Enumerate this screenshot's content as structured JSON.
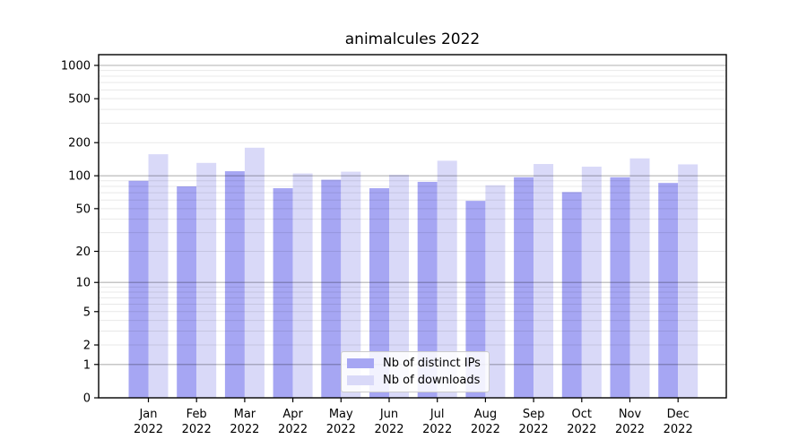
{
  "figure": {
    "background": "#ffffff",
    "plot_border_color": "#000000"
  },
  "chart_data": {
    "type": "bar",
    "title": "animalcules 2022",
    "xlabel": "",
    "ylabel": "",
    "categories": [
      "Jan",
      "Feb",
      "Mar",
      "Apr",
      "May",
      "Jun",
      "Jul",
      "Aug",
      "Sep",
      "Oct",
      "Nov",
      "Dec"
    ],
    "category_year": "2022",
    "series": [
      {
        "name": "Nb of distinct IPs",
        "color": "#a6a6f3",
        "values": [
          90,
          80,
          110,
          77,
          92,
          77,
          88,
          59,
          97,
          71,
          97,
          86
        ]
      },
      {
        "name": "Nb of downloads",
        "color": "#d9d9f8",
        "values": [
          157,
          131,
          180,
          105,
          109,
          102,
          137,
          82,
          128,
          121,
          144,
          127
        ]
      }
    ],
    "yscale": "log10(value+1)",
    "ylim": [
      0,
      1250
    ],
    "yticks": [
      0,
      1,
      2,
      5,
      10,
      20,
      50,
      100,
      200,
      500,
      1000
    ],
    "major_gridlines": [
      1,
      10,
      100,
      1000
    ],
    "minor_gridlines": [
      2,
      3,
      4,
      5,
      6,
      7,
      8,
      9,
      20,
      30,
      40,
      50,
      60,
      70,
      80,
      90,
      200,
      300,
      400,
      500,
      600,
      700,
      800,
      900
    ],
    "grid": "on",
    "legend": {
      "position": "lower center",
      "entries": [
        "Nb of distinct IPs",
        "Nb of downloads"
      ]
    }
  }
}
